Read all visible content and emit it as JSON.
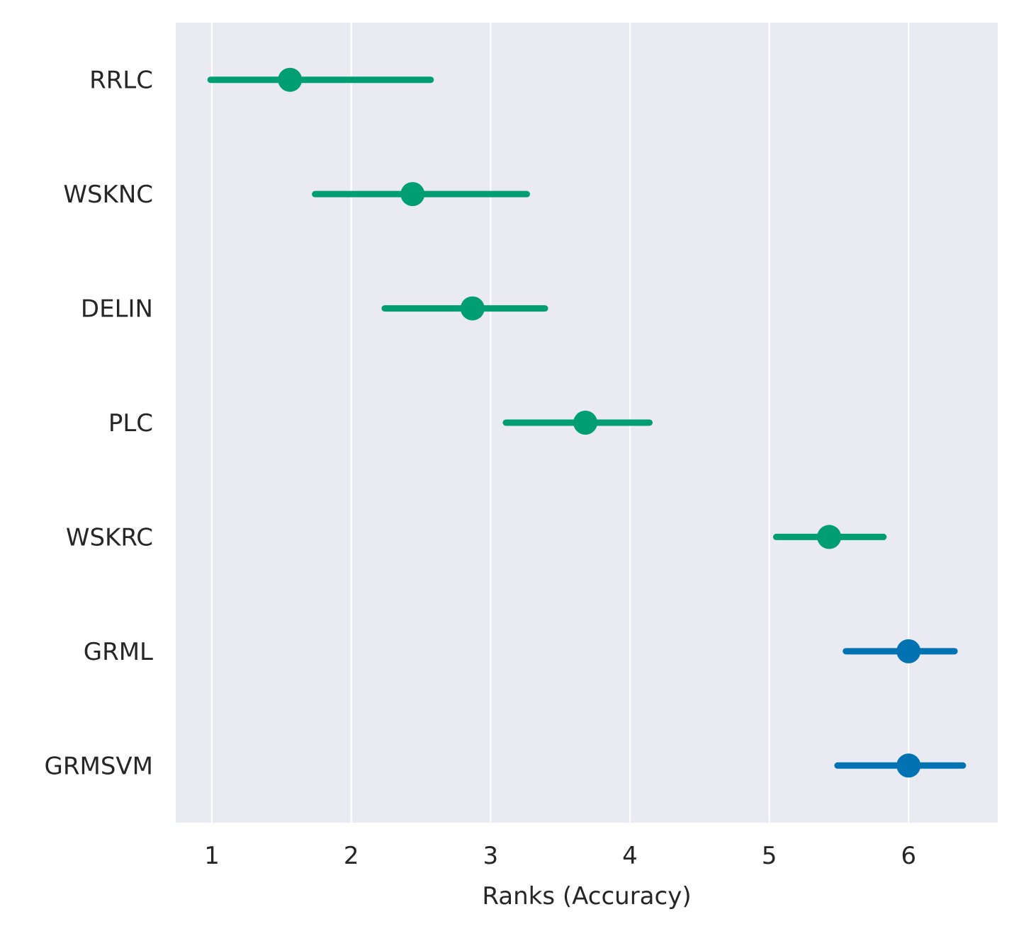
{
  "chart_data": {
    "type": "scatter",
    "xlabel": "Ranks (Accuracy)",
    "ylabel": "",
    "xlim": [
      0.74,
      6.64
    ],
    "xticks": [
      1,
      2,
      3,
      4,
      5,
      6
    ],
    "grid": "vertical",
    "background": "#EAEAF2",
    "categories": [
      "RRLC",
      "WSKNC",
      "DELIN",
      "PLC",
      "WSKRC",
      "GRML",
      "GRMSVM"
    ],
    "points": [
      {
        "label": "RRLC",
        "value": 1.56,
        "low": 0.99,
        "high": 2.57,
        "color": "#029E73"
      },
      {
        "label": "WSKNC",
        "value": 2.44,
        "low": 1.74,
        "high": 3.26,
        "color": "#029E73"
      },
      {
        "label": "DELIN",
        "value": 2.87,
        "low": 2.24,
        "high": 3.39,
        "color": "#029E73"
      },
      {
        "label": "PLC",
        "value": 3.68,
        "low": 3.11,
        "high": 4.14,
        "color": "#029E73"
      },
      {
        "label": "WSKRC",
        "value": 5.43,
        "low": 5.05,
        "high": 5.82,
        "color": "#029E73"
      },
      {
        "label": "GRML",
        "value": 6.0,
        "low": 5.55,
        "high": 6.33,
        "color": "#0173B2"
      },
      {
        "label": "GRMSVM",
        "value": 6.0,
        "low": 5.49,
        "high": 6.39,
        "color": "#0173B2"
      }
    ]
  }
}
